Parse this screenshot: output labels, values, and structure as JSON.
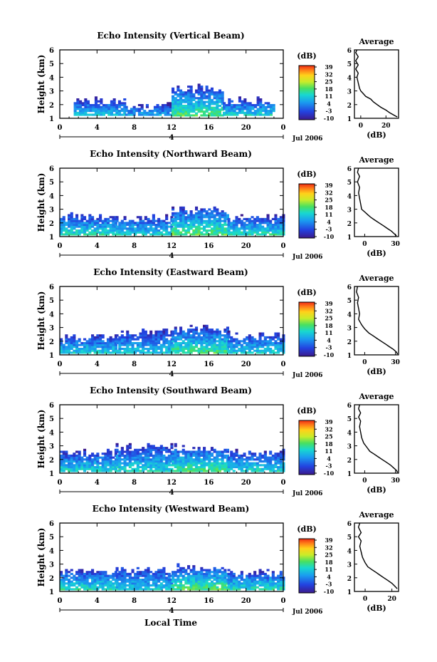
{
  "figure": {
    "xlabel_bottom": "Local Time",
    "date_label": "Jul 2006",
    "day_label": "4",
    "panel_ylabel": "Height (km)",
    "colorbar_unit": "(dB)",
    "avg_title": "Average",
    "avg_xlabel": "(dB)"
  },
  "chart_data": [
    {
      "type": "heatmap",
      "title": "Echo Intensity (Vertical Beam)",
      "ylabel": "Height (km)",
      "x_ticks": [
        "0",
        "4",
        "8",
        "12",
        "16",
        "20",
        "0"
      ],
      "y_ticks": [
        "1",
        "2",
        "3",
        "4",
        "5",
        "6"
      ],
      "xlim": [
        0,
        24
      ],
      "ylim": [
        1,
        6
      ],
      "colorbar_ticks": [
        "39",
        "32",
        "25",
        "18",
        "11",
        "4",
        "-3",
        "-10"
      ],
      "clim": [
        -10,
        39
      ],
      "profile": {
        "x_ticks": [
          "0",
          "20"
        ],
        "xlim": [
          -5,
          30
        ],
        "points": [
          [
            -3,
            6
          ],
          [
            -4,
            5.8
          ],
          [
            -2,
            5.5
          ],
          [
            -4,
            5.2
          ],
          [
            -2,
            4.9
          ],
          [
            -4,
            4.6
          ],
          [
            -2,
            4.3
          ],
          [
            -3,
            4.0
          ],
          [
            -2,
            3.6
          ],
          [
            -1,
            3.2
          ],
          [
            0,
            3.0
          ],
          [
            2,
            2.8
          ],
          [
            4,
            2.6
          ],
          [
            8,
            2.4
          ],
          [
            10,
            2.2
          ],
          [
            13,
            2.0
          ],
          [
            16,
            1.8
          ],
          [
            20,
            1.6
          ],
          [
            23,
            1.4
          ],
          [
            27,
            1.2
          ],
          [
            29,
            1.1
          ]
        ]
      },
      "echo": [
        {
          "x0": 1.5,
          "x1": 7,
          "h0": 1.2,
          "h1": 2.5,
          "i": 0.35
        },
        {
          "x0": 7,
          "x1": 12,
          "h0": 1.2,
          "h1": 2.1,
          "i": 0.3
        },
        {
          "x0": 12,
          "x1": 17.5,
          "h0": 1.15,
          "h1": 3.4,
          "i": 0.5
        },
        {
          "x0": 17.5,
          "x1": 23,
          "h0": 1.2,
          "h1": 2.5,
          "i": 0.38
        }
      ]
    },
    {
      "type": "heatmap",
      "title": "Echo Intensity (Northward Beam)",
      "ylabel": "Height (km)",
      "x_ticks": [
        "0",
        "4",
        "8",
        "12",
        "16",
        "20",
        "0"
      ],
      "y_ticks": [
        "1",
        "2",
        "3",
        "4",
        "5",
        "6"
      ],
      "xlim": [
        0,
        24
      ],
      "ylim": [
        1,
        6
      ],
      "colorbar_ticks": [
        "39",
        "32",
        "25",
        "18",
        "11",
        "4",
        "-3",
        "-10"
      ],
      "clim": [
        -10,
        39
      ],
      "profile": {
        "x_ticks": [
          "0",
          "30"
        ],
        "xlim": [
          -10,
          33
        ],
        "points": [
          [
            -6,
            6
          ],
          [
            -7,
            5.7
          ],
          [
            -5,
            5.4
          ],
          [
            -7,
            5.0
          ],
          [
            -5,
            4.6
          ],
          [
            -6,
            4.2
          ],
          [
            -5,
            3.8
          ],
          [
            -4,
            3.4
          ],
          [
            -3,
            3.0
          ],
          [
            0,
            2.8
          ],
          [
            3,
            2.6
          ],
          [
            6,
            2.4
          ],
          [
            10,
            2.2
          ],
          [
            14,
            2.0
          ],
          [
            18,
            1.8
          ],
          [
            22,
            1.6
          ],
          [
            26,
            1.4
          ],
          [
            29,
            1.2
          ],
          [
            31,
            1.05
          ]
        ]
      },
      "echo": [
        {
          "x0": 0,
          "x1": 6,
          "h0": 1.1,
          "h1": 2.7,
          "i": 0.42
        },
        {
          "x0": 6,
          "x1": 12,
          "h0": 1.1,
          "h1": 2.6,
          "i": 0.38
        },
        {
          "x0": 12,
          "x1": 18,
          "h0": 1.1,
          "h1": 3.2,
          "i": 0.5
        },
        {
          "x0": 18,
          "x1": 24,
          "h0": 1.1,
          "h1": 2.6,
          "i": 0.42
        }
      ]
    },
    {
      "type": "heatmap",
      "title": "Echo Intensity (Eastward Beam)",
      "ylabel": "Height (km)",
      "x_ticks": [
        "0",
        "4",
        "8",
        "12",
        "16",
        "20",
        "0"
      ],
      "y_ticks": [
        "1",
        "2",
        "3",
        "4",
        "5",
        "6"
      ],
      "xlim": [
        0,
        24
      ],
      "ylim": [
        1,
        6
      ],
      "colorbar_ticks": [
        "39",
        "32",
        "25",
        "18",
        "11",
        "4",
        "-3",
        "-10"
      ],
      "clim": [
        -10,
        39
      ],
      "profile": {
        "x_ticks": [
          "0",
          "30"
        ],
        "xlim": [
          -10,
          33
        ],
        "points": [
          [
            -7,
            6
          ],
          [
            -8,
            5.6
          ],
          [
            -6,
            5.2
          ],
          [
            -7,
            4.8
          ],
          [
            -6,
            4.4
          ],
          [
            -5,
            4.0
          ],
          [
            -6,
            3.6
          ],
          [
            -3,
            3.2
          ],
          [
            0,
            2.9
          ],
          [
            4,
            2.6
          ],
          [
            8,
            2.4
          ],
          [
            12,
            2.2
          ],
          [
            16,
            2.0
          ],
          [
            20,
            1.8
          ],
          [
            24,
            1.6
          ],
          [
            28,
            1.4
          ],
          [
            31,
            1.2
          ],
          [
            32,
            1.05
          ]
        ]
      },
      "echo": [
        {
          "x0": 0,
          "x1": 6,
          "h0": 1.1,
          "h1": 2.5,
          "i": 0.38
        },
        {
          "x0": 6,
          "x1": 12,
          "h0": 1.1,
          "h1": 2.9,
          "i": 0.36
        },
        {
          "x0": 12,
          "x1": 18,
          "h0": 1.1,
          "h1": 3.1,
          "i": 0.48
        },
        {
          "x0": 18,
          "x1": 24,
          "h0": 1.1,
          "h1": 2.7,
          "i": 0.38
        }
      ]
    },
    {
      "type": "heatmap",
      "title": "Echo Intensity (Southward Beam)",
      "ylabel": "Height (km)",
      "x_ticks": [
        "0",
        "4",
        "8",
        "12",
        "16",
        "20",
        "0"
      ],
      "y_ticks": [
        "1",
        "2",
        "3",
        "4",
        "5",
        "6"
      ],
      "xlim": [
        0,
        24
      ],
      "ylim": [
        1,
        6
      ],
      "colorbar_ticks": [
        "39",
        "32",
        "25",
        "18",
        "11",
        "4",
        "-3",
        "-10"
      ],
      "clim": [
        -10,
        39
      ],
      "profile": {
        "x_ticks": [
          "0",
          "30"
        ],
        "xlim": [
          -10,
          33
        ],
        "points": [
          [
            -5,
            6
          ],
          [
            -6,
            5.7
          ],
          [
            -4,
            5.4
          ],
          [
            -6,
            5.1
          ],
          [
            -4,
            4.8
          ],
          [
            -5,
            4.4
          ],
          [
            -4,
            4.0
          ],
          [
            -3,
            3.6
          ],
          [
            -1,
            3.2
          ],
          [
            2,
            2.9
          ],
          [
            5,
            2.6
          ],
          [
            9,
            2.4
          ],
          [
            13,
            2.2
          ],
          [
            17,
            2.0
          ],
          [
            21,
            1.8
          ],
          [
            25,
            1.6
          ],
          [
            28,
            1.4
          ],
          [
            31,
            1.2
          ],
          [
            32,
            1.05
          ]
        ]
      },
      "echo": [
        {
          "x0": 0,
          "x1": 6,
          "h0": 1.1,
          "h1": 2.7,
          "i": 0.4
        },
        {
          "x0": 6,
          "x1": 12,
          "h0": 1.1,
          "h1": 3.2,
          "i": 0.4
        },
        {
          "x0": 12,
          "x1": 18,
          "h0": 1.1,
          "h1": 3.1,
          "i": 0.48
        },
        {
          "x0": 18,
          "x1": 24,
          "h0": 1.1,
          "h1": 2.7,
          "i": 0.4
        }
      ]
    },
    {
      "type": "heatmap",
      "title": "Echo Intensity (Westward Beam)",
      "ylabel": "Height (km)",
      "x_ticks": [
        "0",
        "4",
        "8",
        "12",
        "16",
        "20",
        "0"
      ],
      "y_ticks": [
        "1",
        "2",
        "3",
        "4",
        "5",
        "6"
      ],
      "xlim": [
        0,
        24
      ],
      "ylim": [
        1,
        6
      ],
      "colorbar_ticks": [
        "39",
        "32",
        "25",
        "18",
        "11",
        "4",
        "-3",
        "-10"
      ],
      "clim": [
        -10,
        39
      ],
      "profile": {
        "x_ticks": [
          "0",
          "20"
        ],
        "xlim": [
          -8,
          25
        ],
        "points": [
          [
            -4,
            6
          ],
          [
            -5,
            5.7
          ],
          [
            -3,
            5.3
          ],
          [
            -5,
            5.0
          ],
          [
            -3,
            4.7
          ],
          [
            -4,
            4.3
          ],
          [
            -3,
            3.9
          ],
          [
            -2,
            3.5
          ],
          [
            0,
            3.1
          ],
          [
            2,
            2.8
          ],
          [
            5,
            2.6
          ],
          [
            8,
            2.4
          ],
          [
            11,
            2.2
          ],
          [
            14,
            2.0
          ],
          [
            17,
            1.8
          ],
          [
            20,
            1.6
          ],
          [
            22,
            1.4
          ],
          [
            24,
            1.2
          ]
        ]
      },
      "echo": [
        {
          "x0": 0,
          "x1": 6,
          "h0": 1.1,
          "h1": 2.7,
          "i": 0.42
        },
        {
          "x0": 6,
          "x1": 12,
          "h0": 1.1,
          "h1": 2.9,
          "i": 0.36
        },
        {
          "x0": 12,
          "x1": 18,
          "h0": 1.1,
          "h1": 3.0,
          "i": 0.5
        },
        {
          "x0": 18,
          "x1": 24,
          "h0": 1.1,
          "h1": 2.6,
          "i": 0.42
        }
      ]
    }
  ]
}
